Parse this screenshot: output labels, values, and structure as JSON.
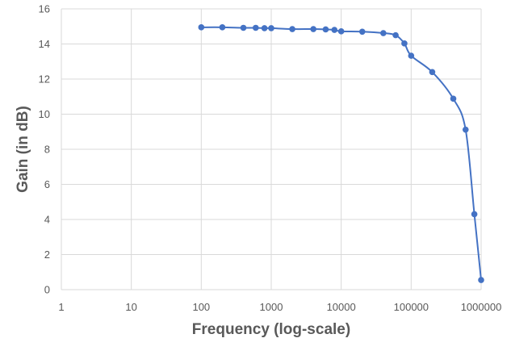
{
  "chart_data": {
    "type": "line",
    "xlabel": "Frequency (log-scale)",
    "ylabel": "Gain (in dB)",
    "x_scale": "log",
    "xlim": [
      1,
      1000000
    ],
    "ylim": [
      0,
      16
    ],
    "x_ticks": [
      1,
      10,
      100,
      1000,
      10000,
      100000,
      1000000
    ],
    "x_tick_labels": [
      "1",
      "10",
      "100",
      "1000",
      "10000",
      "100000",
      "1000000"
    ],
    "y_ticks": [
      0,
      2,
      4,
      6,
      8,
      10,
      12,
      14,
      16
    ],
    "y_tick_labels": [
      "0",
      "2",
      "4",
      "6",
      "8",
      "10",
      "12",
      "14",
      "16"
    ],
    "grid": true,
    "legend": "none",
    "series": [
      {
        "color": "#4472C4",
        "x": [
          100,
          200,
          400,
          600,
          800,
          1000,
          2000,
          4000,
          6000,
          8000,
          10000,
          20000,
          40000,
          60000,
          80000,
          100000,
          200000,
          400000,
          600000,
          800000,
          1000000
        ],
        "values": [
          14.95,
          14.95,
          14.92,
          14.92,
          14.9,
          14.9,
          14.85,
          14.85,
          14.83,
          14.8,
          14.72,
          14.7,
          14.62,
          14.5,
          14.03,
          13.33,
          12.4,
          10.88,
          9.12,
          4.3,
          0.55
        ]
      }
    ]
  }
}
